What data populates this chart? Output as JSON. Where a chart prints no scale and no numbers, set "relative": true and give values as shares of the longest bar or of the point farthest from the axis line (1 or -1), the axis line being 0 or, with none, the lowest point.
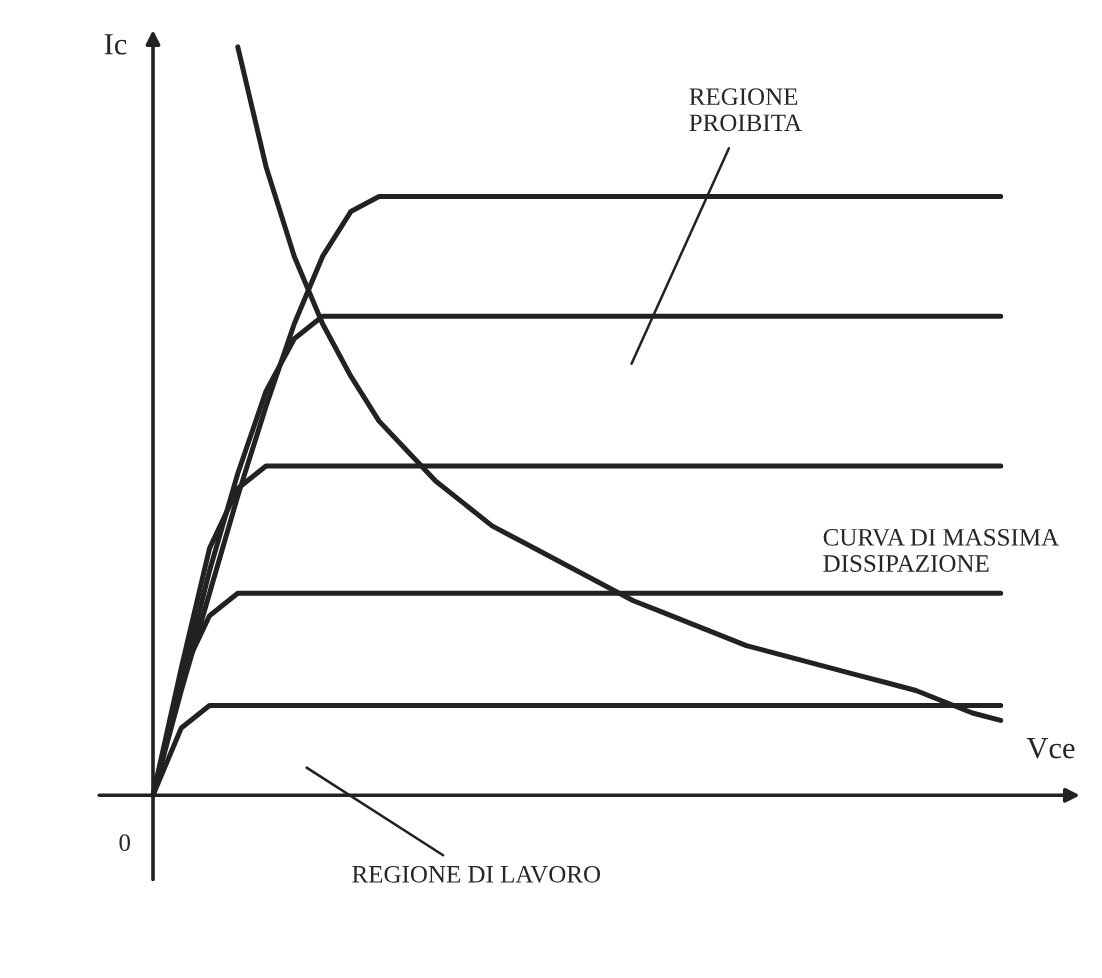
{
  "chart_data": {
    "type": "line",
    "relative": true,
    "xlabel": "Vce",
    "ylabel": "Ic",
    "line_style": "solid",
    "annotations": [
      "0",
      "REGIONE\nPROIBITA",
      "CURVA DI MASSIMA\nDISSIPAZIONE",
      "REGIONE DI LAVORO"
    ],
    "categories": [
      null,
      null,
      null,
      null,
      null,
      null,
      null,
      null,
      null,
      null,
      null,
      null,
      null,
      null,
      null,
      null,
      null,
      null,
      null,
      null,
      null,
      null,
      null,
      null,
      null,
      null,
      null,
      null,
      null,
      null,
      null
    ],
    "series": [
      {
        "color": "#222222",
        "values": [
          0,
          0.14,
          0.27,
          0.4,
          0.52,
          0.63,
          0.72,
          0.78,
          0.8,
          0.8,
          0.8,
          0.8,
          0.8,
          0.8,
          0.8,
          0.8,
          0.8,
          0.8,
          0.8,
          0.8,
          0.8,
          0.8,
          0.8,
          0.8,
          0.8,
          0.8,
          0.8,
          0.8,
          0.8,
          0.8,
          0.8
        ]
      },
      {
        "color": "#222222",
        "values": [
          0,
          0.15,
          0.3,
          0.43,
          0.54,
          0.61,
          0.64,
          0.64,
          0.64,
          0.64,
          0.64,
          0.64,
          0.64,
          0.64,
          0.64,
          0.64,
          0.64,
          0.64,
          0.64,
          0.64,
          0.64,
          0.64,
          0.64,
          0.64,
          0.64,
          0.64,
          0.64,
          0.64,
          0.64,
          0.64,
          0.64
        ]
      },
      {
        "color": "#222222",
        "values": [
          0,
          0.17,
          0.33,
          0.41,
          0.44,
          0.44,
          0.44,
          0.44,
          0.44,
          0.44,
          0.44,
          0.44,
          0.44,
          0.44,
          0.44,
          0.44,
          0.44,
          0.44,
          0.44,
          0.44,
          0.44,
          0.44,
          0.44,
          0.44,
          0.44,
          0.44,
          0.44,
          0.44,
          0.44,
          0.44,
          0.44
        ]
      },
      {
        "color": "#222222",
        "values": [
          0,
          0.16,
          0.24,
          0.27,
          0.27,
          0.27,
          0.27,
          0.27,
          0.27,
          0.27,
          0.27,
          0.27,
          0.27,
          0.27,
          0.27,
          0.27,
          0.27,
          0.27,
          0.27,
          0.27,
          0.27,
          0.27,
          0.27,
          0.27,
          0.27,
          0.27,
          0.27,
          0.27,
          0.27,
          0.27,
          0.27
        ]
      },
      {
        "color": "#222222",
        "values": [
          0,
          0.09,
          0.12,
          0.12,
          0.12,
          0.12,
          0.12,
          0.12,
          0.12,
          0.12,
          0.12,
          0.12,
          0.12,
          0.12,
          0.12,
          0.12,
          0.12,
          0.12,
          0.12,
          0.12,
          0.12,
          0.12,
          0.12,
          0.12,
          0.12,
          0.12,
          0.12,
          0.12,
          0.12,
          0.12,
          0.12
        ]
      },
      {
        "color": "#222222",
        "values": [
          null,
          null,
          null,
          1.0,
          0.84,
          0.72,
          0.63,
          0.56,
          0.5,
          0.46,
          0.42,
          0.39,
          0.36,
          0.34,
          0.32,
          0.3,
          0.28,
          0.26,
          0.245,
          0.23,
          0.215,
          0.2,
          0.19,
          0.18,
          0.17,
          0.16,
          0.15,
          0.14,
          0.125,
          0.11,
          0.1
        ]
      }
    ]
  }
}
